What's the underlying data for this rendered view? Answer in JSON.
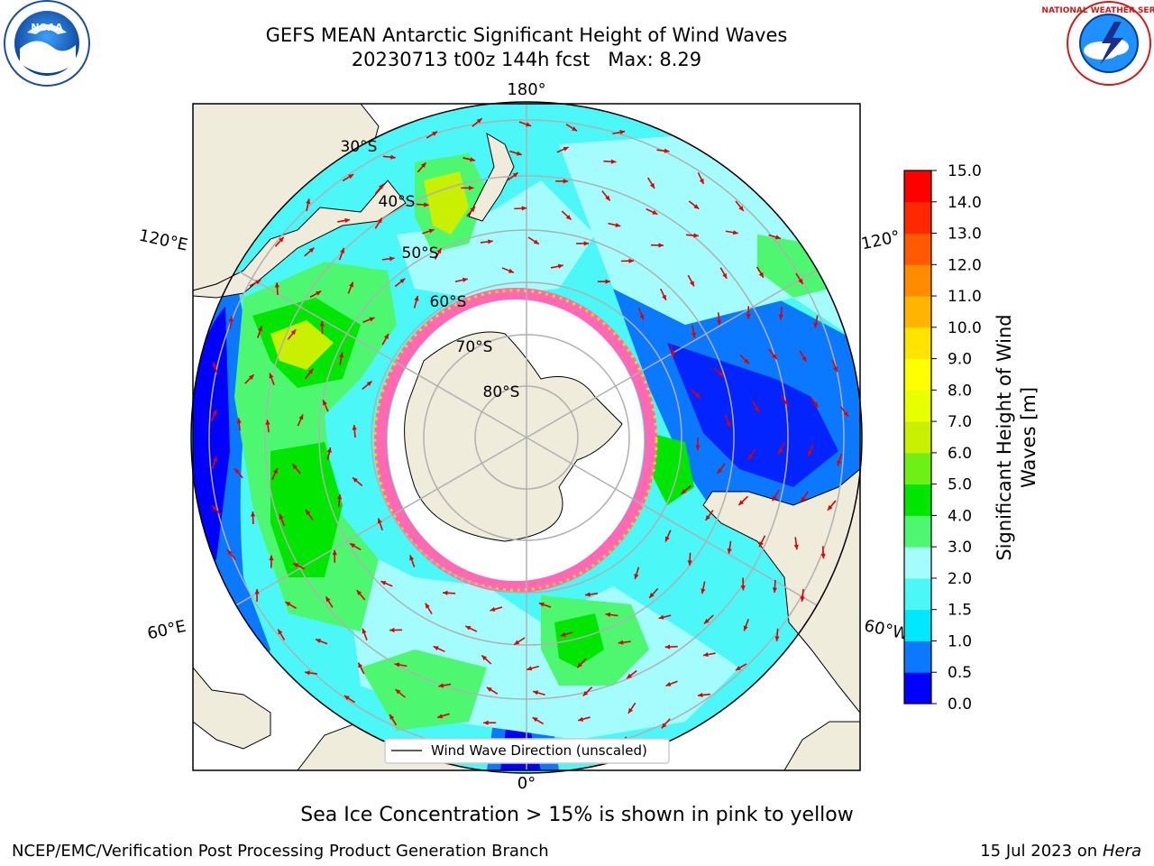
{
  "header": {
    "title_line1": "GEFS MEAN Antarctic Significant Height of Wind Waves",
    "title_line2": "20230713 t00z 144h fcst   Max: 8.29",
    "left_logo_icon": "noaa-logo-icon",
    "left_logo_text": "NOAA",
    "right_logo_icon": "national-weather-service-logo-icon",
    "right_logo_text": "NATIONAL WEATHER SERVICE"
  },
  "map": {
    "projection": "south-polar-stereographic",
    "longitude_labels": [
      "180°",
      "120°E",
      "120°",
      "60°E",
      "60°W",
      "0°"
    ],
    "latitude_labels": [
      "30°S",
      "40°S",
      "50°S",
      "60°S",
      "70°S",
      "80°S"
    ],
    "legend_label": "Wind Wave Direction (unscaled)",
    "arrow_color": "#e00000",
    "land_color": "#efecdc",
    "ice_colors": [
      "#ff69b4",
      "#ffd700"
    ],
    "grid_color": "#b0b0b0"
  },
  "colorbar": {
    "title_line1": "Significant Height of Wind",
    "title_line2": "Waves [m]",
    "tick_labels": [
      "0.0",
      "0.5",
      "1.0",
      "1.5",
      "2.0",
      "3.0",
      "4.0",
      "5.0",
      "6.0",
      "7.0",
      "8.0",
      "9.0",
      "10.0",
      "11.0",
      "12.0",
      "13.0",
      "14.0",
      "15.0"
    ],
    "levels": [
      0,
      0.5,
      1,
      1.5,
      2,
      3,
      4,
      5,
      6,
      7,
      8,
      9,
      10,
      11,
      12,
      13,
      14,
      15
    ],
    "colors": [
      "#0000ff",
      "#0a78ff",
      "#00e8ff",
      "#4cf7f7",
      "#a4fcfc",
      "#4df870",
      "#00e600",
      "#6ef014",
      "#c8f000",
      "#e8ff00",
      "#ffff00",
      "#ffe400",
      "#ffb400",
      "#ff8c00",
      "#ff5a00",
      "#ff2800",
      "#ff0000"
    ]
  },
  "caption": "Sea Ice Concentration > 15% is shown in pink to yellow",
  "footer": {
    "left": "NCEP/EMC/Verification Post Processing Product Generation Branch",
    "right_date": "15 Jul 2023 on ",
    "right_machine": "Hera"
  }
}
